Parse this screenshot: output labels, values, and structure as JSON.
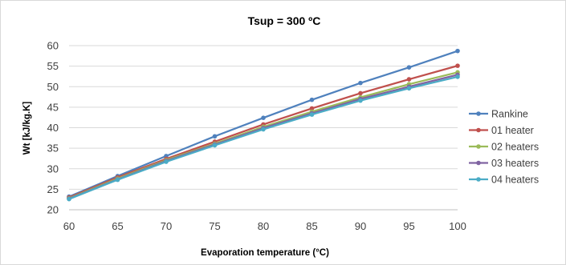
{
  "chart_data": {
    "type": "line",
    "title": "Tsup = 300 ºC",
    "xlabel": "Evaporation temperature (°C)",
    "ylabel": "Wt [kJ/kg.K]",
    "x": [
      60,
      65,
      70,
      75,
      80,
      85,
      90,
      95,
      100
    ],
    "xlim": [
      60,
      100
    ],
    "ylim": [
      20,
      60
    ],
    "yticks": [
      20,
      25,
      30,
      35,
      40,
      45,
      50,
      55,
      60
    ],
    "grid": true,
    "legend_position": "right",
    "series": [
      {
        "name": "Rankine",
        "color": "#4F81BD",
        "values": [
          23.2,
          28.2,
          33.1,
          37.9,
          42.4,
          46.8,
          50.9,
          54.7,
          58.7
        ]
      },
      {
        "name": "01 heater",
        "color": "#C0504D",
        "values": [
          23.0,
          27.9,
          32.4,
          36.6,
          40.8,
          44.7,
          48.4,
          51.8,
          55.1
        ]
      },
      {
        "name": "02 heaters",
        "color": "#9BBB59",
        "values": [
          22.8,
          27.6,
          32.1,
          36.1,
          40.2,
          43.9,
          47.4,
          50.6,
          53.5
        ]
      },
      {
        "name": "03 heaters",
        "color": "#8064A2",
        "values": [
          22.7,
          27.4,
          31.9,
          35.9,
          39.9,
          43.5,
          47.0,
          50.0,
          52.9
        ]
      },
      {
        "name": "04 heaters",
        "color": "#4BACC6",
        "values": [
          22.6,
          27.3,
          31.7,
          35.7,
          39.6,
          43.2,
          46.6,
          49.6,
          52.4
        ]
      }
    ]
  }
}
